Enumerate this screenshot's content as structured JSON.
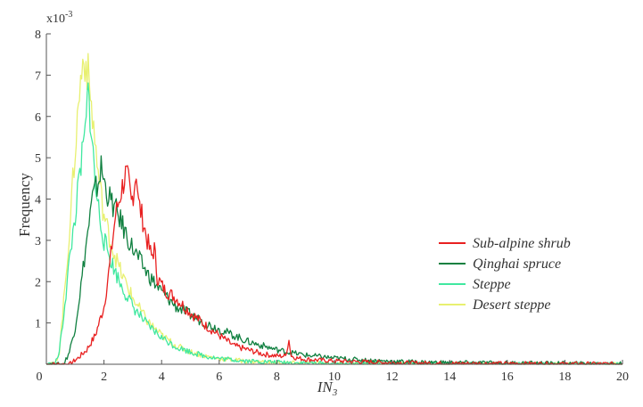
{
  "chart_data": {
    "type": "line",
    "xlabel": "IN",
    "xlabel_subscript": "3",
    "ylabel": "Frequency",
    "y_multiplier": "x10",
    "y_multiplier_exp": "-3",
    "xlim": [
      0,
      20
    ],
    "ylim": [
      0,
      8
    ],
    "x_ticks": [
      "0",
      "2",
      "4",
      "6",
      "8",
      "10",
      "12",
      "14",
      "16",
      "18",
      "20"
    ],
    "y_ticks": [
      "0",
      "1",
      "2",
      "3",
      "4",
      "5",
      "6",
      "7",
      "8"
    ],
    "grid": false,
    "legend_position": "right",
    "series": [
      {
        "name": "Sub-alpine shrub",
        "color": "#e82020",
        "x": [
          0.0,
          0.8,
          1.1,
          1.4,
          1.7,
          2.0,
          2.2,
          2.4,
          2.6,
          2.75,
          2.85,
          2.95,
          3.05,
          3.12,
          3.2,
          3.35,
          3.5,
          3.65,
          3.75,
          3.85,
          4.1,
          4.5,
          5.0,
          5.5,
          6.0,
          6.5,
          7.0,
          7.5,
          8.0,
          8.3,
          8.42,
          8.5,
          8.7,
          9.0,
          10.0,
          11.0,
          12.0,
          13.0,
          14.0,
          16.0,
          18.0,
          20.0
        ],
        "values": [
          0.0,
          0.0,
          0.15,
          0.35,
          0.7,
          1.4,
          2.4,
          3.6,
          4.2,
          4.6,
          4.4,
          3.9,
          4.3,
          4.7,
          3.9,
          3.5,
          3.0,
          2.6,
          2.8,
          2.1,
          1.8,
          1.6,
          1.25,
          0.95,
          0.7,
          0.45,
          0.35,
          0.25,
          0.2,
          0.2,
          0.58,
          0.2,
          0.15,
          0.12,
          0.08,
          0.06,
          0.04,
          0.03,
          0.02,
          0.02,
          0.01,
          0.01
        ]
      },
      {
        "name": "Qinghai spruce",
        "color": "#108040",
        "x": [
          0.0,
          0.6,
          0.8,
          1.0,
          1.2,
          1.4,
          1.6,
          1.8,
          1.9,
          2.05,
          2.2,
          2.5,
          2.8,
          3.0,
          3.5,
          4.0,
          4.5,
          5.0,
          5.5,
          6.0,
          6.5,
          7.0,
          7.5,
          8.0,
          8.5,
          9.0,
          10.0,
          11.0,
          12.0,
          13.0,
          14.0,
          16.0,
          18.0,
          20.0
        ],
        "values": [
          0.0,
          0.0,
          0.3,
          0.9,
          1.9,
          3.0,
          4.0,
          4.4,
          4.75,
          4.3,
          4.0,
          3.6,
          3.1,
          2.8,
          2.2,
          1.75,
          1.4,
          1.2,
          1.0,
          0.85,
          0.7,
          0.55,
          0.45,
          0.35,
          0.28,
          0.22,
          0.15,
          0.1,
          0.07,
          0.05,
          0.04,
          0.03,
          0.02,
          0.01
        ]
      },
      {
        "name": "Steppe",
        "color": "#40e8a0",
        "x": [
          0.0,
          0.3,
          0.45,
          0.6,
          0.8,
          1.0,
          1.2,
          1.35,
          1.45,
          1.55,
          1.7,
          1.85,
          2.0,
          2.3,
          2.6,
          3.0,
          3.5,
          4.0,
          4.5,
          5.0,
          5.5,
          6.0,
          7.0,
          8.0,
          9.0,
          10.0,
          12.0,
          14.0,
          16.0,
          20.0
        ],
        "values": [
          0.0,
          0.0,
          0.3,
          1.2,
          2.5,
          3.6,
          4.8,
          5.6,
          6.6,
          5.8,
          4.3,
          3.6,
          3.0,
          2.4,
          1.9,
          1.4,
          0.95,
          0.65,
          0.42,
          0.3,
          0.2,
          0.14,
          0.08,
          0.05,
          0.03,
          0.02,
          0.01,
          0.01,
          0.0,
          0.0
        ]
      },
      {
        "name": "Desert steppe",
        "color": "#e8f070",
        "x": [
          0.0,
          0.3,
          0.45,
          0.6,
          0.8,
          1.0,
          1.15,
          1.3,
          1.45,
          1.6,
          1.8,
          2.0,
          2.3,
          2.6,
          3.0,
          3.5,
          4.0,
          4.5,
          5.0,
          5.5,
          6.0,
          7.0,
          8.0,
          9.0,
          10.0,
          12.0,
          14.0,
          16.0,
          20.0
        ],
        "values": [
          0.0,
          0.0,
          0.3,
          1.5,
          3.2,
          5.2,
          6.6,
          7.5,
          7.0,
          6.0,
          4.6,
          3.6,
          2.8,
          2.2,
          1.6,
          1.05,
          0.7,
          0.45,
          0.3,
          0.2,
          0.14,
          0.07,
          0.04,
          0.02,
          0.01,
          0.01,
          0.0,
          0.0,
          0.0
        ]
      }
    ]
  }
}
